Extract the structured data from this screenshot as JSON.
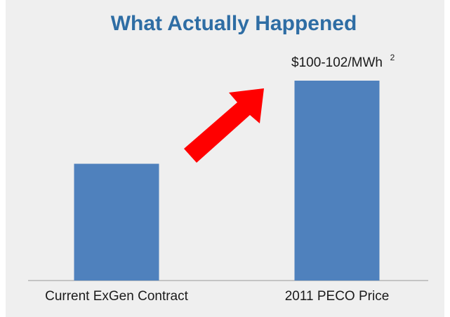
{
  "chart_data": {
    "type": "bar",
    "title": "What Actually Happened",
    "categories": [
      "Current ExGen Contract",
      "2011 PECO Price"
    ],
    "values": [
      59,
      101
    ],
    "color": "#4f81bd",
    "ylim": [
      0,
      101
    ],
    "annotations": [
      "$100-102/MWh",
      "2"
    ]
  }
}
